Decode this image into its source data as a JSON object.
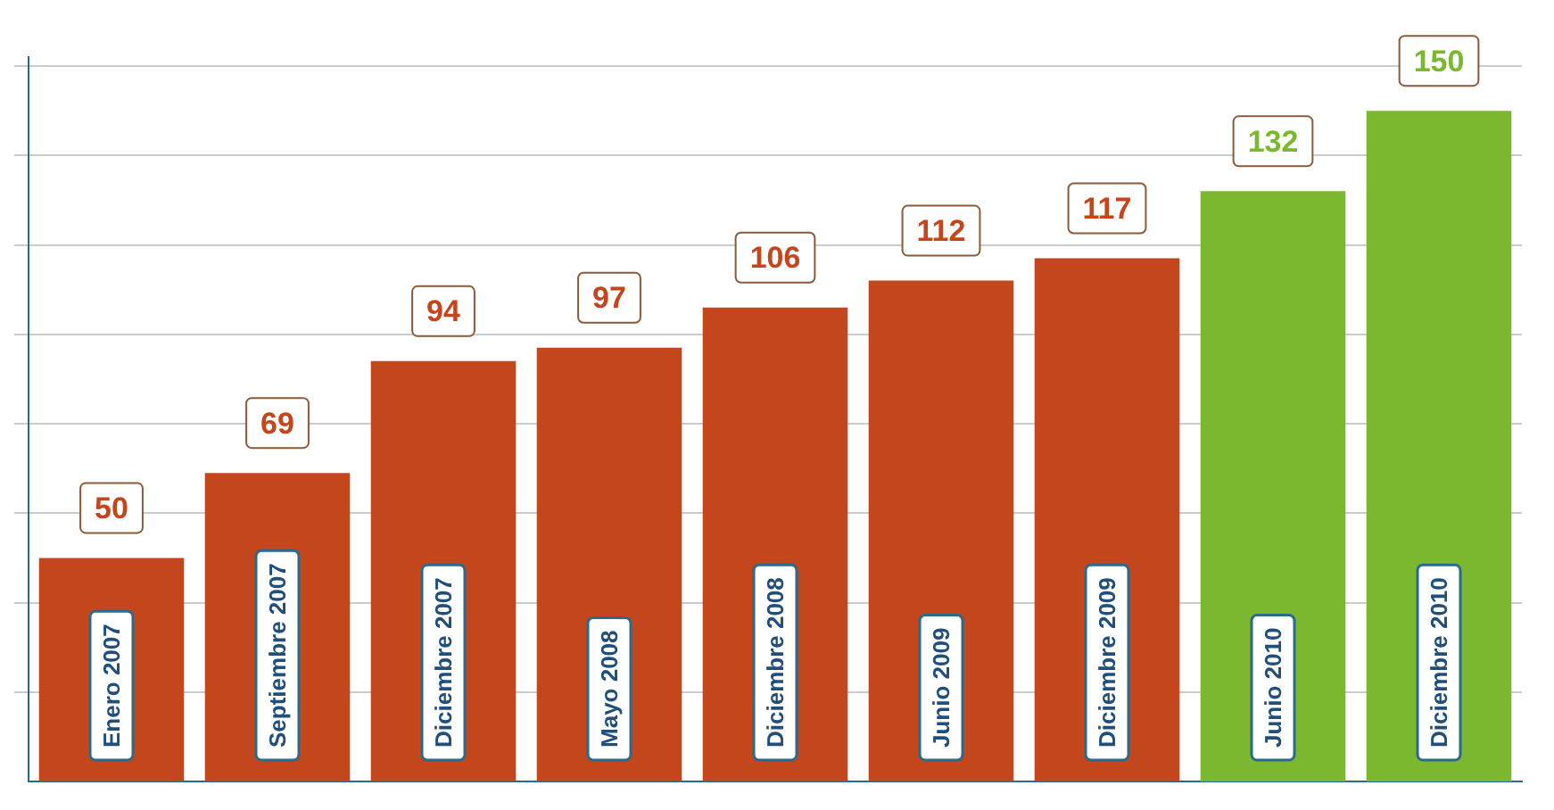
{
  "chart_data": {
    "type": "bar",
    "categories": [
      "Enero 2007",
      "Septiembre 2007",
      "Diciembre 2007",
      "Mayo 2008",
      "Diciembre 2008",
      "Junio 2009",
      "Diciembre 2009",
      "Junio 2010",
      "Diciembre 2010"
    ],
    "values": [
      50,
      69,
      94,
      97,
      106,
      112,
      117,
      132,
      150
    ],
    "colors": [
      "#c4461c",
      "#c4461c",
      "#c4461c",
      "#c4461c",
      "#c4461c",
      "#c4461c",
      "#c4461c",
      "#7cb82f",
      "#7cb82f"
    ],
    "data_labels": true,
    "ylim": [
      0,
      162
    ],
    "yticks": [
      {
        "value": 20,
        "label": null
      },
      {
        "value": 40,
        "label": null
      },
      {
        "value": 60,
        "label": null
      },
      {
        "value": 80,
        "label": null
      },
      {
        "value": 100,
        "label": null
      },
      {
        "value": 120,
        "label": null
      },
      {
        "value": 140,
        "label": null
      },
      {
        "value": 160,
        "label": null
      }
    ],
    "grid": "y",
    "tick_labels": "x"
  }
}
